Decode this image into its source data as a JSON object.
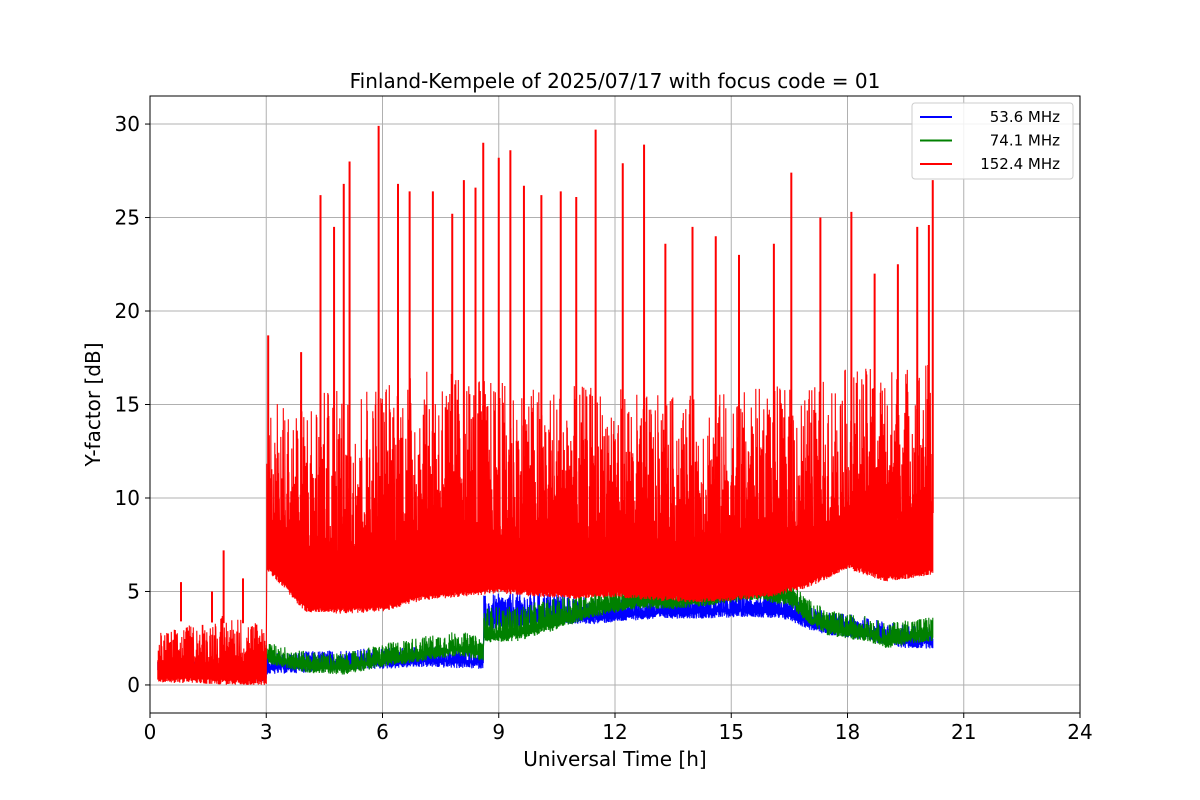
{
  "chart_data": {
    "type": "line",
    "title": "Finland-Kempele of 2025/07/17 with focus code = 01",
    "xlabel": "Universal Time [h]",
    "ylabel": "Y-factor [dB]",
    "xlim": [
      0,
      24
    ],
    "ylim": [
      -1.5,
      31.5
    ],
    "xticks": [
      0,
      3,
      6,
      9,
      12,
      15,
      18,
      21,
      24
    ],
    "yticks": [
      0,
      5,
      10,
      15,
      20,
      25,
      30
    ],
    "grid": true,
    "legend_position": "top-right",
    "series": [
      {
        "name": "53.6 MHz",
        "color": "#0000ff",
        "x": [
          0.2,
          3.0,
          3.0,
          5.0,
          7.0,
          8.6,
          8.6,
          9.5,
          10.5,
          11.5,
          12.5,
          13.5,
          14.5,
          15.5,
          16.5,
          17.0,
          17.5,
          18.0,
          18.5,
          19.0,
          19.5,
          20.2
        ],
        "y": [
          0.9,
          0.5,
          0.9,
          1.1,
          1.3,
          1.2,
          3.3,
          3.4,
          3.6,
          3.6,
          3.8,
          3.9,
          3.9,
          4.0,
          3.8,
          3.3,
          3.0,
          2.9,
          2.7,
          2.5,
          2.3,
          2.3
        ],
        "spread": [
          0.5,
          0.5,
          0.8,
          0.8,
          0.8,
          0.6,
          1.5,
          1.6,
          1.4,
          1.0,
          0.9,
          0.9,
          0.9,
          0.9,
          0.9,
          0.9,
          0.9,
          0.9,
          0.9,
          0.9,
          0.9,
          0.9
        ]
      },
      {
        "name": "74.1 MHz",
        "color": "#008000",
        "x": [
          3.0,
          4.0,
          5.0,
          6.0,
          7.0,
          8.0,
          8.6,
          8.6,
          9.5,
          10.5,
          11.5,
          12.5,
          13.5,
          14.5,
          15.5,
          16.5,
          17.0,
          17.5,
          18.0,
          18.5,
          19.0,
          19.5,
          20.2
        ],
        "y": [
          1.5,
          1.0,
          0.9,
          1.3,
          1.6,
          1.9,
          1.6,
          2.6,
          2.7,
          3.3,
          4.0,
          4.4,
          4.4,
          4.6,
          4.9,
          4.6,
          3.6,
          3.0,
          2.8,
          2.7,
          2.3,
          2.5,
          2.7
        ],
        "spread": [
          0.8,
          0.8,
          0.8,
          0.9,
          1.0,
          1.0,
          0.9,
          1.6,
          1.5,
          1.4,
          1.2,
          1.1,
          1.1,
          1.1,
          1.1,
          1.0,
          1.0,
          1.0,
          1.0,
          1.0,
          1.0,
          1.0,
          1.0
        ]
      },
      {
        "name": "152.4 MHz",
        "color": "#ff0000",
        "x": [
          0.2,
          1.0,
          2.0,
          3.0,
          3.0,
          4.0,
          5.0,
          6.0,
          7.0,
          8.0,
          9.0,
          10.0,
          11.0,
          12.0,
          13.0,
          14.0,
          15.0,
          16.0,
          17.0,
          18.0,
          19.0,
          20.2
        ],
        "y": [
          0.4,
          0.4,
          0.3,
          0.3,
          6.5,
          4.2,
          4.1,
          4.2,
          4.8,
          5.0,
          5.2,
          5.0,
          4.9,
          5.0,
          4.8,
          4.7,
          4.8,
          5.0,
          5.5,
          6.5,
          5.8,
          6.2
        ],
        "top": [
          2.8,
          3.2,
          3.8,
          3.4,
          15.0,
          15.5,
          16.0,
          16.5,
          16.8,
          16.8,
          16.3,
          16.0,
          16.0,
          16.0,
          15.5,
          15.5,
          15.8,
          16.0,
          16.0,
          17.0,
          17.0,
          17.5
        ],
        "spikes": [
          [
            0.8,
            5.5
          ],
          [
            1.6,
            5.0
          ],
          [
            1.9,
            7.2
          ],
          [
            2.4,
            5.7
          ],
          [
            3.05,
            18.7
          ],
          [
            3.9,
            17.8
          ],
          [
            4.4,
            26.2
          ],
          [
            4.75,
            24.5
          ],
          [
            5.0,
            26.8
          ],
          [
            5.15,
            28.0
          ],
          [
            5.9,
            29.9
          ],
          [
            6.4,
            26.8
          ],
          [
            6.7,
            26.4
          ],
          [
            7.3,
            26.4
          ],
          [
            7.8,
            25.2
          ],
          [
            8.1,
            27.0
          ],
          [
            8.4,
            26.6
          ],
          [
            8.6,
            29.0
          ],
          [
            9.0,
            28.2
          ],
          [
            9.3,
            28.6
          ],
          [
            9.65,
            26.7
          ],
          [
            10.1,
            26.2
          ],
          [
            10.6,
            26.4
          ],
          [
            11.0,
            26.1
          ],
          [
            11.5,
            29.7
          ],
          [
            12.2,
            27.9
          ],
          [
            12.75,
            28.9
          ],
          [
            13.3,
            23.6
          ],
          [
            14.0,
            24.5
          ],
          [
            14.6,
            24.0
          ],
          [
            15.2,
            23.0
          ],
          [
            16.1,
            23.6
          ],
          [
            16.55,
            27.4
          ],
          [
            17.3,
            25.0
          ],
          [
            18.1,
            25.3
          ],
          [
            18.7,
            22.0
          ],
          [
            19.3,
            22.5
          ],
          [
            19.8,
            24.5
          ],
          [
            20.1,
            24.6
          ],
          [
            20.2,
            27.0
          ]
        ]
      }
    ]
  }
}
